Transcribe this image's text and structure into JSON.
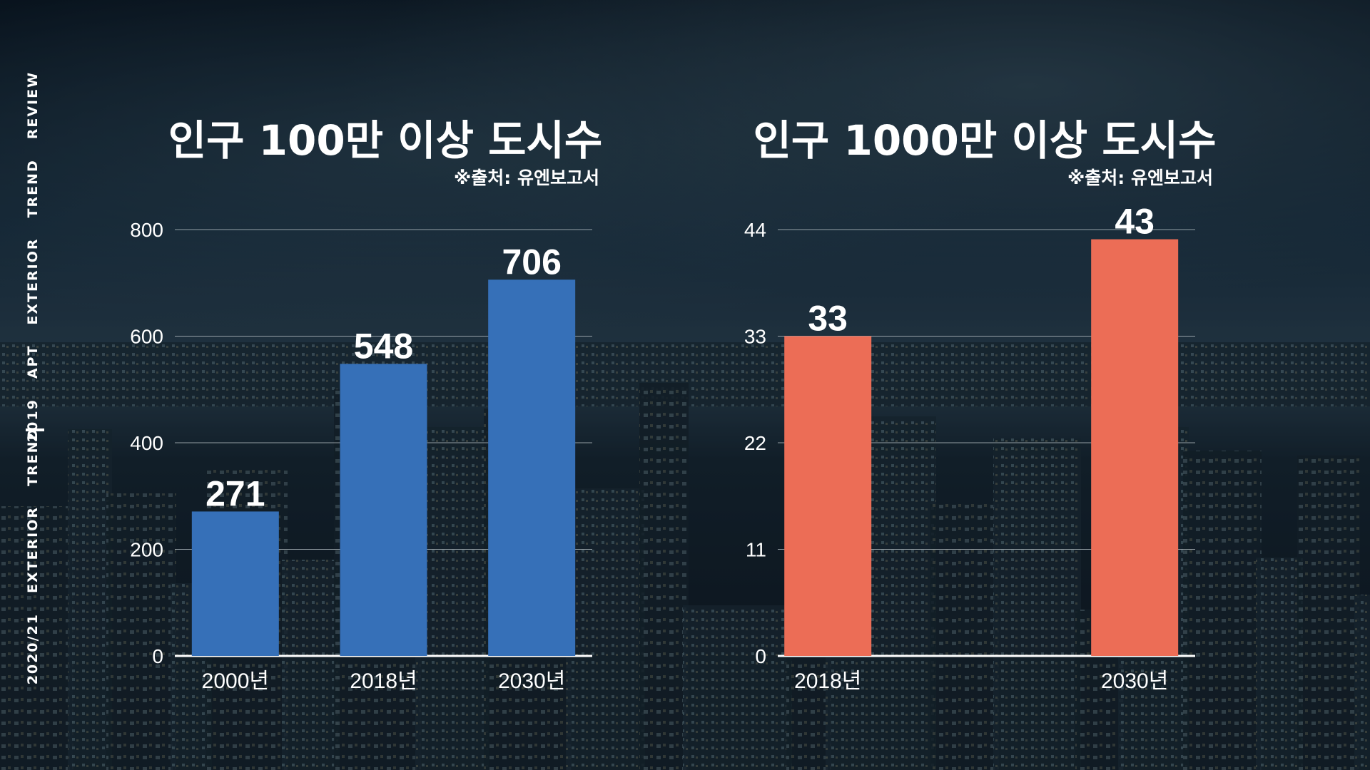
{
  "side_label": {
    "top_words": [
      "REVIEW",
      "TREND",
      "EXTERIOR",
      "APT",
      "2019"
    ],
    "bottom_words": [
      "TREND",
      "EXTERIOR",
      "2020/21"
    ]
  },
  "chart_data": [
    {
      "type": "bar",
      "title": "인구 100만 이상 도시수",
      "source": "※출처: 유엔보고서",
      "categories": [
        "2000년",
        "2018년",
        "2030년"
      ],
      "values": [
        271,
        548,
        706
      ],
      "ylim": [
        0,
        800
      ],
      "yticks": [
        0,
        200,
        400,
        600,
        800
      ],
      "grid": true,
      "bar_color": "#3670b8"
    },
    {
      "type": "bar",
      "title": "인구 1000만 이상 도시수",
      "source": "※출처: 유엔보고서",
      "categories": [
        "2018년",
        "2030년"
      ],
      "values": [
        33,
        43
      ],
      "ylim": [
        0,
        44
      ],
      "yticks": [
        0,
        11,
        22,
        33,
        44
      ],
      "grid": true,
      "bar_color": "#ec6d56"
    }
  ]
}
